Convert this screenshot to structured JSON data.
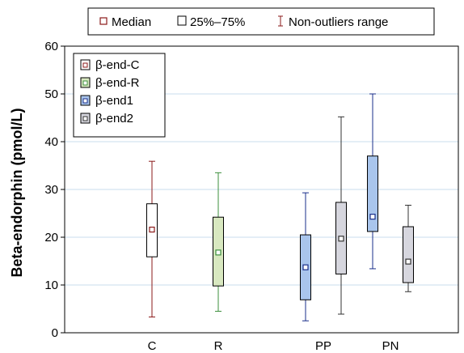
{
  "chart_data": {
    "type": "boxplot",
    "title": "",
    "xlabel": "",
    "ylabel": "Beta-endorphin (pmol/L)",
    "ylim": [
      0,
      60
    ],
    "yticks": [
      0,
      10,
      20,
      30,
      40,
      50,
      60
    ],
    "grid": true,
    "categories": [
      "C",
      "R",
      "PP",
      "PN"
    ],
    "top_legend": [
      {
        "marker": "median-square",
        "label": "Median"
      },
      {
        "marker": "box-square",
        "label": "25%–75%"
      },
      {
        "marker": "whisker",
        "label": "Non-outliers range"
      }
    ],
    "series_legend_position": "top-left",
    "series": [
      {
        "name": "β-end-C",
        "color": "#ffffff",
        "edge": "#8b1a1a",
        "boxes": [
          {
            "category": "C",
            "min": 3.3,
            "q1": 15.9,
            "median": 21.6,
            "q3": 27.0,
            "max": 35.9
          }
        ]
      },
      {
        "name": "β-end-R",
        "color": "#d8e8c0",
        "edge": "#3d8f3d",
        "boxes": [
          {
            "category": "R",
            "min": 4.5,
            "q1": 9.8,
            "median": 16.8,
            "q3": 24.2,
            "max": 33.5
          }
        ]
      },
      {
        "name": "β-end1",
        "color": "#a9c5ec",
        "edge": "#1a2f8b",
        "boxes": [
          {
            "category": "PP",
            "min": 2.5,
            "q1": 6.9,
            "median": 13.7,
            "q3": 20.5,
            "max": 29.3
          },
          {
            "category": "PN",
            "min": 13.4,
            "q1": 21.2,
            "median": 24.3,
            "q3": 37.0,
            "max": 50.0
          }
        ]
      },
      {
        "name": "β-end2",
        "color": "#d6d6de",
        "edge": "#333333",
        "boxes": [
          {
            "category": "PP",
            "min": 3.9,
            "q1": 12.3,
            "median": 19.7,
            "q3": 27.3,
            "max": 45.2
          },
          {
            "category": "PN",
            "min": 8.6,
            "q1": 10.5,
            "median": 14.9,
            "q3": 22.2,
            "max": 26.7
          }
        ]
      }
    ]
  }
}
